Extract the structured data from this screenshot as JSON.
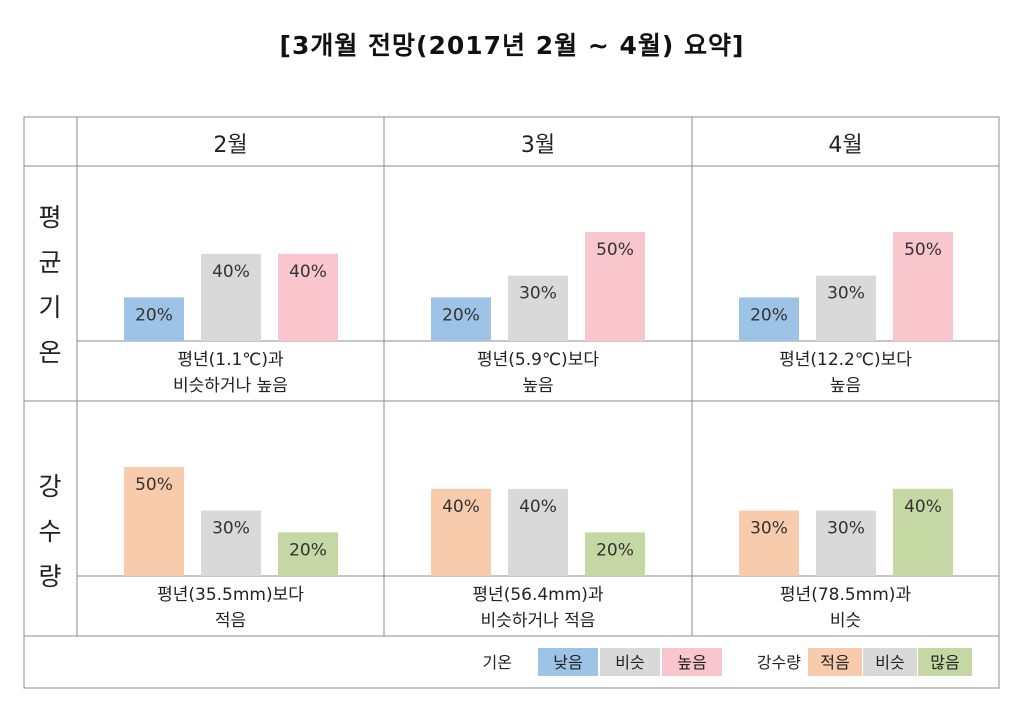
{
  "title": "[3개월 전망(2017년 2월 ~ 4월) 요약]",
  "months": [
    "2월",
    "3월",
    "4월"
  ],
  "row_labels": {
    "temperature": [
      "평",
      "균",
      "기",
      "온"
    ],
    "precipitation": [
      "강",
      "수",
      "량"
    ]
  },
  "chart_data": [
    {
      "type": "bar",
      "name": "평균기온",
      "panels": [
        {
          "month": "2월",
          "categories": [
            "낮음",
            "비슷",
            "높음"
          ],
          "values": [
            20,
            40,
            40
          ],
          "labels": [
            "20%",
            "40%",
            "40%"
          ],
          "summary": [
            "평년(1.1℃)과",
            "비슷하거나 높음"
          ]
        },
        {
          "month": "3월",
          "categories": [
            "낮음",
            "비슷",
            "높음"
          ],
          "values": [
            20,
            30,
            50
          ],
          "labels": [
            "20%",
            "30%",
            "50%"
          ],
          "summary": [
            "평년(5.9℃)보다",
            "높음"
          ]
        },
        {
          "month": "4월",
          "categories": [
            "낮음",
            "비슷",
            "높음"
          ],
          "values": [
            20,
            30,
            50
          ],
          "labels": [
            "20%",
            "30%",
            "50%"
          ],
          "summary": [
            "평년(12.2℃)보다",
            "높음"
          ]
        }
      ],
      "colors": [
        "#9dc3e6",
        "#d9d9d9",
        "#f8c6cc"
      ]
    },
    {
      "type": "bar",
      "name": "강수량",
      "panels": [
        {
          "month": "2월",
          "categories": [
            "적음",
            "비슷",
            "많음"
          ],
          "values": [
            50,
            30,
            20
          ],
          "labels": [
            "50%",
            "30%",
            "20%"
          ],
          "summary": [
            "평년(35.5mm)보다",
            "적음"
          ]
        },
        {
          "month": "3월",
          "categories": [
            "적음",
            "비슷",
            "많음"
          ],
          "values": [
            40,
            40,
            20
          ],
          "labels": [
            "40%",
            "40%",
            "20%"
          ],
          "summary": [
            "평년(56.4mm)과",
            "비슷하거나 적음"
          ]
        },
        {
          "month": "4월",
          "categories": [
            "적음",
            "비슷",
            "많음"
          ],
          "values": [
            30,
            30,
            40
          ],
          "labels": [
            "30%",
            "30%",
            "40%"
          ],
          "summary": [
            "평년(78.5mm)과",
            "비슷"
          ]
        }
      ],
      "colors": [
        "#f8cbad",
        "#d9d9d9",
        "#c5d8a4"
      ]
    }
  ],
  "legend": {
    "temperature_title": "기온",
    "temperature_items": [
      "낮음",
      "비슷",
      "높음"
    ],
    "precipitation_title": "강수량",
    "precipitation_items": [
      "적음",
      "비슷",
      "많음"
    ]
  }
}
